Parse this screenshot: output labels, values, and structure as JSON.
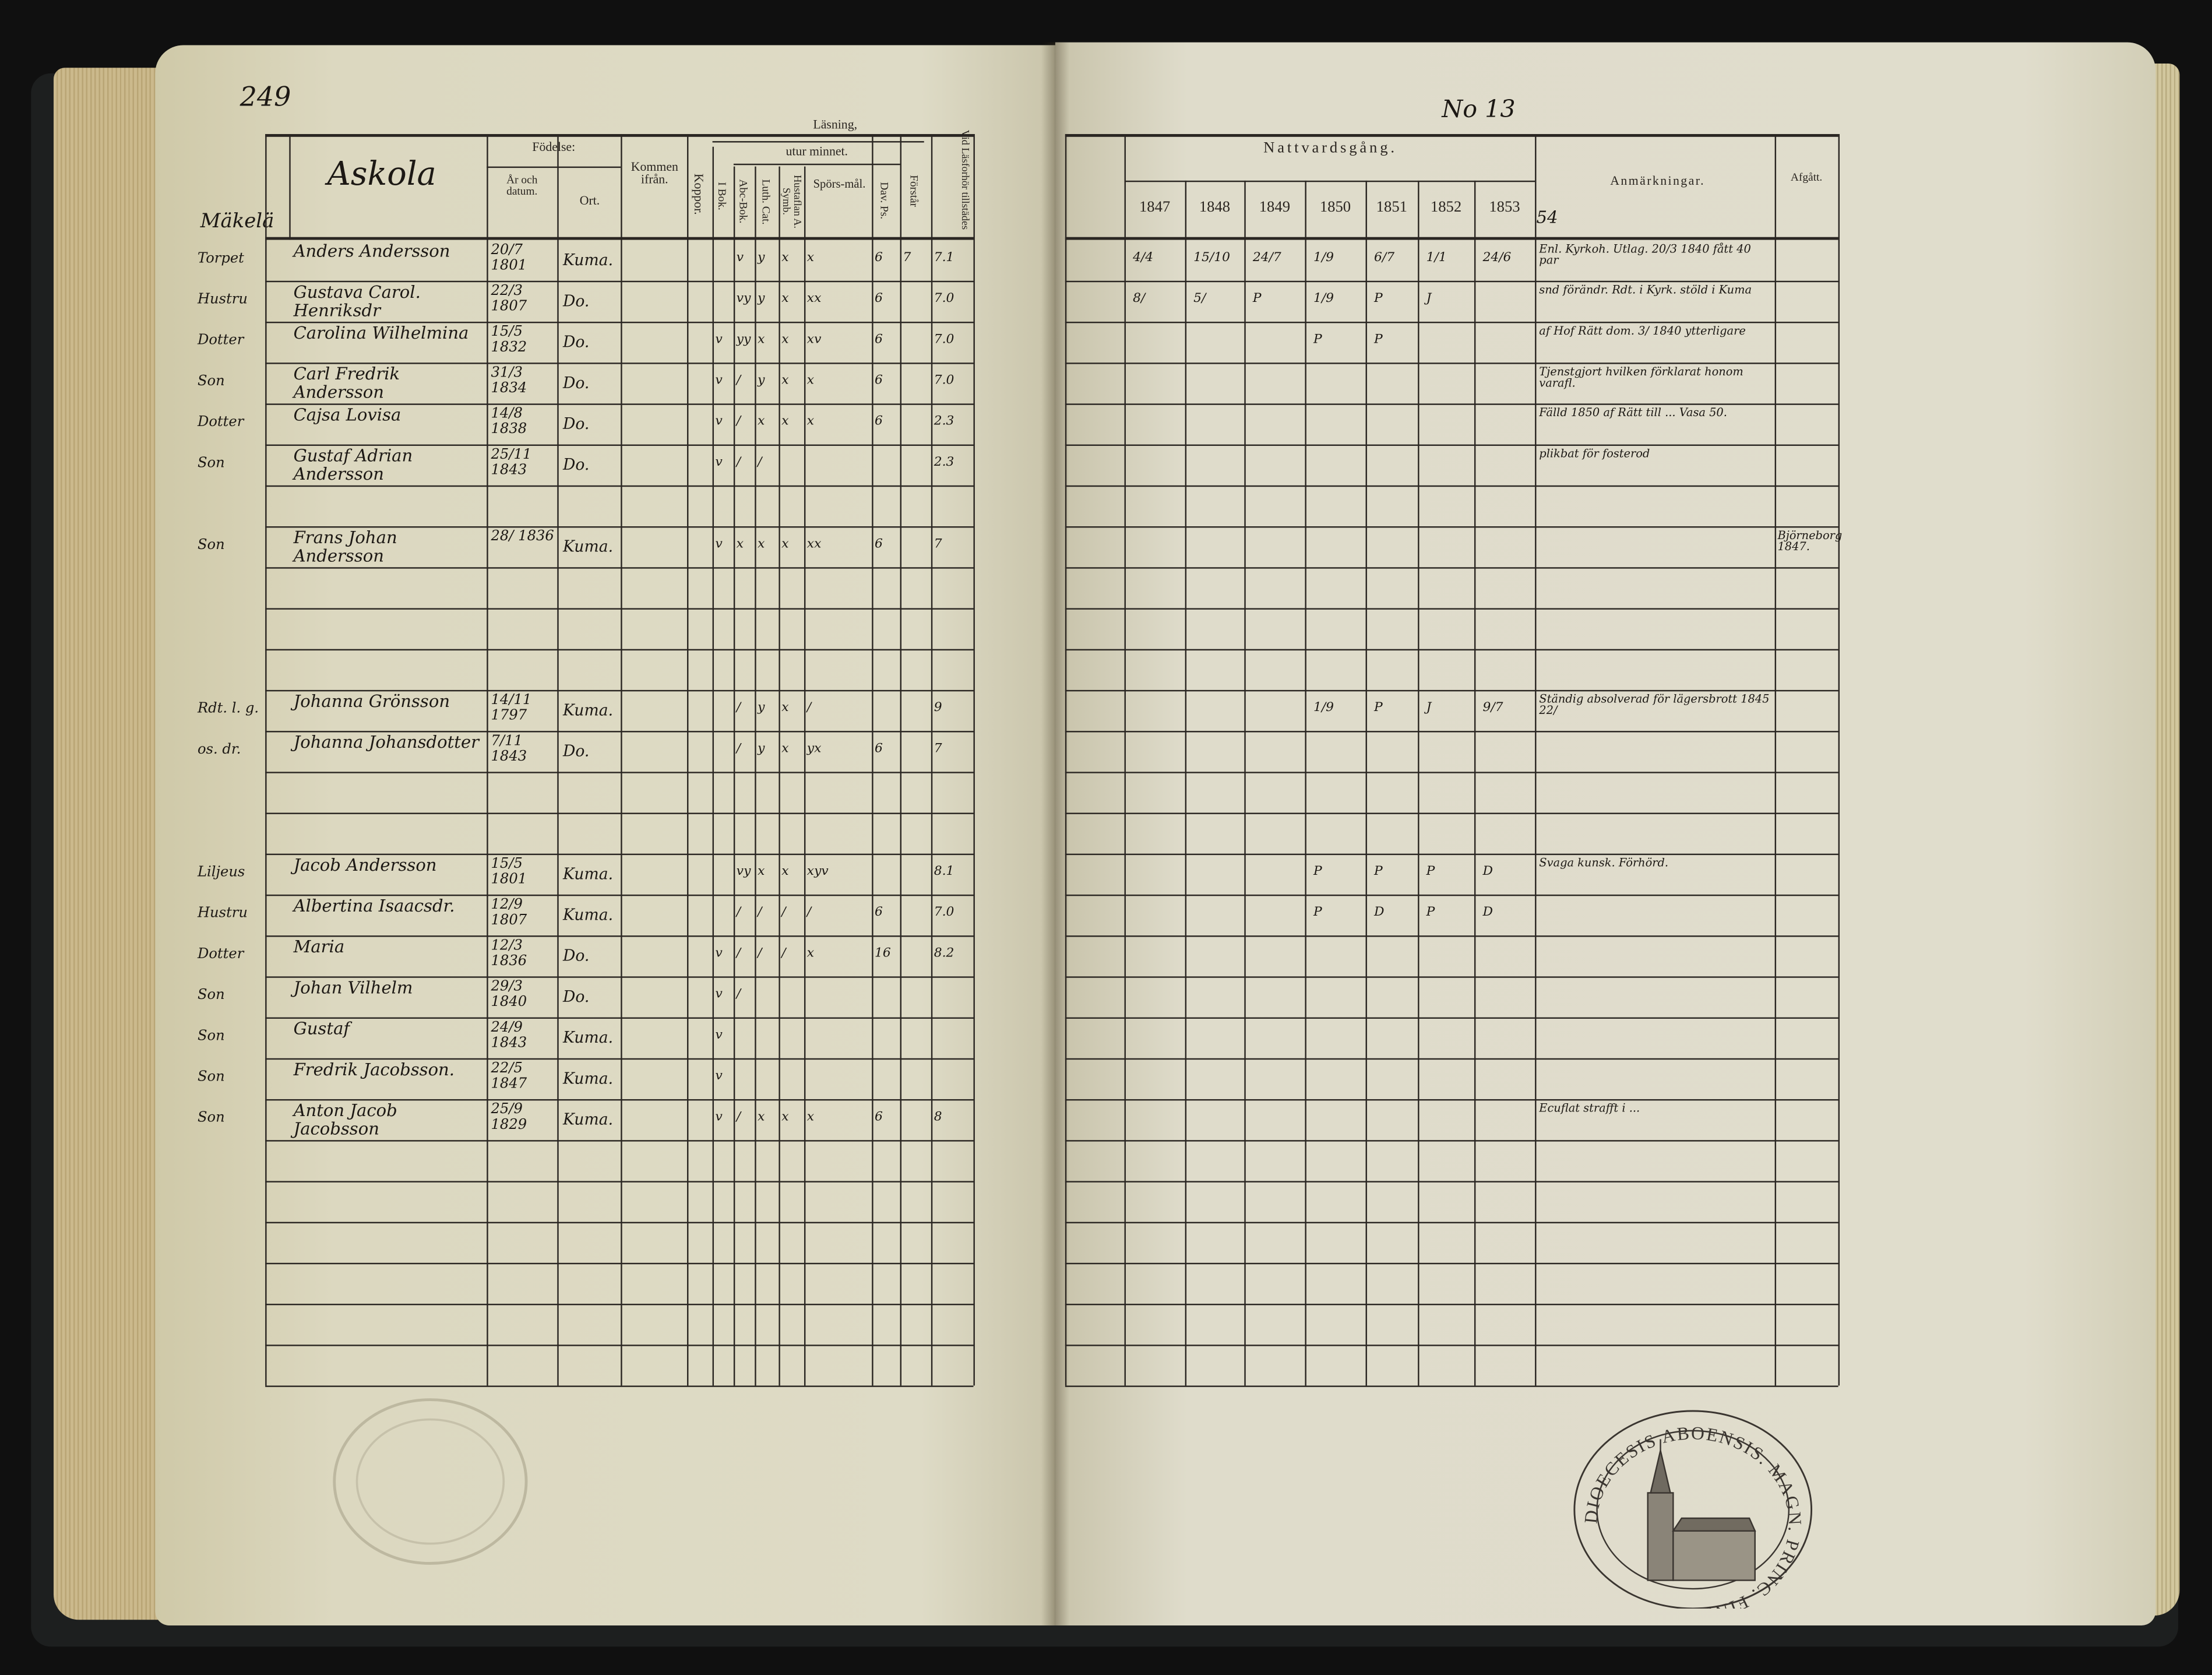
{
  "left_page": {
    "page_number": "249",
    "village": "Askola",
    "farm": "Mäkelä",
    "header": {
      "fodelse": "Födelse:",
      "ar": "År och datum.",
      "ort": "Ort.",
      "kommen": "Kommen ifrån.",
      "koppor": "Koppor.",
      "lasning": "Läsning,",
      "utur": "utur minnet.",
      "i_bok": "I Bok.",
      "abc": "Abc-Bok.",
      "luth": "Luth. Cat.",
      "hust": "Hustaflan A. Symb.",
      "spors": "Spörs-mål.",
      "dav": "Dav. Ps.",
      "forstar": "Förstår",
      "vid": "Vid Läsforhör tillstädes"
    },
    "rows": [
      {
        "row": 0,
        "rel": "Torpet",
        "name": "Anders Andersson",
        "date": "20/7 1801",
        "place": "Kuma.",
        "marks": [
          "",
          "v",
          "y",
          "x",
          "x",
          "6",
          "7",
          "7.1"
        ]
      },
      {
        "row": 1,
        "rel": "Hustru",
        "name": "Gustava Carol. Henriksdr",
        "date": "22/3 1807",
        "place": "Do.",
        "marks": [
          "",
          "vy",
          "y",
          "x",
          "xx",
          "6",
          "",
          "7.0"
        ]
      },
      {
        "row": 2,
        "rel": "Dotter",
        "name": "Carolina Wilhelmina",
        "date": "15/5 1832",
        "place": "Do.",
        "marks": [
          "v",
          "yy",
          "x",
          "x",
          "xv",
          "6",
          "",
          "7.0"
        ]
      },
      {
        "row": 3,
        "rel": "Son",
        "name": "Carl Fredrik Andersson",
        "date": "31/3 1834",
        "place": "Do.",
        "marks": [
          "v",
          "/",
          "y",
          "x",
          "x",
          "6",
          "",
          "7.0"
        ]
      },
      {
        "row": 4,
        "rel": "Dotter",
        "name": "Cajsa Lovisa",
        "date": "14/8 1838",
        "place": "Do.",
        "marks": [
          "v",
          "/",
          "x",
          "x",
          "x",
          "6",
          "",
          "2.3"
        ]
      },
      {
        "row": 5,
        "rel": "Son",
        "name": "Gustaf Adrian Andersson",
        "date": "25/11 1843",
        "place": "Do.",
        "marks": [
          "v",
          "/",
          "/",
          "",
          "",
          "",
          "",
          "2.3"
        ]
      },
      {
        "row": 7,
        "rel": "Son",
        "name": "Frans Johan Andersson",
        "date": "28/ 1836",
        "place": "Kuma.",
        "marks": [
          "v",
          "x",
          "x",
          "x",
          "xx",
          "6",
          "",
          "7"
        ]
      },
      {
        "row": 11,
        "rel": "Rdt. l. g.",
        "name": "Johanna Grönsson",
        "date": "14/11 1797",
        "place": "Kuma.",
        "marks": [
          "",
          "/",
          "y",
          "x",
          "/",
          "",
          "",
          "9"
        ]
      },
      {
        "row": 12,
        "rel": "os. dr.",
        "name": "Johanna Johansdotter",
        "date": "7/11 1843",
        "place": "Do.",
        "marks": [
          "",
          "/",
          "y",
          "x",
          "yx",
          "6",
          "",
          "7"
        ]
      },
      {
        "row": 15,
        "rel": "Liljeus",
        "name": "Jacob Andersson",
        "date": "15/5 1801",
        "place": "Kuma.",
        "marks": [
          "",
          "vy",
          "x",
          "x",
          "xyv",
          "",
          "",
          "8.1"
        ]
      },
      {
        "row": 16,
        "rel": "Hustru",
        "name": "Albertina Isaacsdr.",
        "date": "12/9 1807",
        "place": "Kuma.",
        "marks": [
          "",
          "/",
          "/",
          "/",
          "/",
          "6",
          "",
          "7.0"
        ]
      },
      {
        "row": 17,
        "rel": "Dotter",
        "name": "Maria",
        "date": "12/3 1836",
        "place": "Do.",
        "marks": [
          "v",
          "/",
          "/",
          "/",
          "x",
          "16",
          "",
          "8.2"
        ]
      },
      {
        "row": 18,
        "rel": "Son",
        "name": "Johan Vilhelm",
        "date": "29/3 1840",
        "place": "Do.",
        "marks": [
          "v",
          "/",
          "",
          "",
          "",
          "",
          "",
          ""
        ]
      },
      {
        "row": 19,
        "rel": "Son",
        "name": "Gustaf",
        "date": "24/9 1843",
        "place": "Kuma.",
        "marks": [
          "v",
          "",
          "",
          "",
          "",
          "",
          "",
          ""
        ]
      },
      {
        "row": 20,
        "rel": "Son",
        "name": "Fredrik Jacobsson.",
        "date": "22/5 1847",
        "place": "Kuma.",
        "marks": [
          "v",
          "",
          "",
          "",
          "",
          "",
          "",
          ""
        ]
      },
      {
        "row": 21,
        "rel": "Son",
        "name": "Anton Jacob Jacobsson",
        "date": "25/9 1829",
        "place": "Kuma.",
        "marks": [
          "v",
          "/",
          "x",
          "x",
          "x",
          "6",
          "",
          "8"
        ]
      }
    ]
  },
  "right_page": {
    "number": "No 13",
    "header": {
      "nattvard": "Nattvardsgång.",
      "years": [
        "1847",
        "1848",
        "1849",
        "1850",
        "1851",
        "1852",
        "1853"
      ],
      "extra_year": "54",
      "anm": "Anmärkningar.",
      "afgatt": "Afgått."
    },
    "rows": [
      {
        "row": 0,
        "c": [
          "4/4",
          "15/10",
          "24/7",
          "1/9",
          "6/7",
          "1/1",
          "24/6"
        ],
        "anm": "Enl. Kyrkoh. Utlag. 20/3 1840 fått 40 par",
        "afgatt": ""
      },
      {
        "row": 1,
        "c": [
          "8/",
          "5/",
          "P",
          "1/9",
          "P",
          "J",
          ""
        ],
        "anm": "snd förändr. Rdt. i Kyrk. stöld i Kuma",
        "afgatt": ""
      },
      {
        "row": 2,
        "c": [
          "",
          "",
          "",
          "P",
          "P",
          "",
          ""
        ],
        "anm": "af Hof Rätt dom. 3/ 1840 ytterligare",
        "afgatt": ""
      },
      {
        "row": 3,
        "c": [
          "",
          "",
          "",
          "",
          "",
          "",
          ""
        ],
        "anm": "Tjenstgjort hvilken förklarat honom varafl.",
        "afgatt": ""
      },
      {
        "row": 4,
        "c": [
          "",
          "",
          "",
          "",
          "",
          "",
          ""
        ],
        "anm": "Fälld 1850 af Rätt till ... Vasa 50.",
        "afgatt": ""
      },
      {
        "row": 5,
        "c": [
          "",
          "",
          "",
          "",
          "",
          "",
          ""
        ],
        "anm": "plikbat för fosterod",
        "afgatt": ""
      },
      {
        "row": 7,
        "c": [
          "",
          "",
          "",
          "",
          "",
          "",
          ""
        ],
        "anm": "",
        "afgatt": "Björneborg 1847."
      },
      {
        "row": 11,
        "c": [
          "",
          "",
          "",
          "1/9",
          "P",
          "J",
          "9/7"
        ],
        "anm": "Ständig absolverad för lägersbrott 1845 22/",
        "afgatt": ""
      },
      {
        "row": 15,
        "c": [
          "",
          "",
          "",
          "P",
          "P",
          "P",
          "D"
        ],
        "anm": "Svaga kunsk. Förhörd.",
        "afgatt": ""
      },
      {
        "row": 16,
        "c": [
          "",
          "",
          "",
          "P",
          "D",
          "P",
          "D"
        ],
        "anm": "",
        "afgatt": ""
      },
      {
        "row": 21,
        "c": [
          "",
          "",
          "",
          "",
          "",
          "",
          ""
        ],
        "anm": "Ecuflat strafft i ...",
        "afgatt": ""
      }
    ]
  },
  "stamp": {
    "text": "DIOECESIS ABOENSIS. MAGN. PRINC. FINL."
  },
  "colors": {
    "paper": "#dedbc6",
    "ink": "#1c1814",
    "cover": "#1d1f1f"
  }
}
